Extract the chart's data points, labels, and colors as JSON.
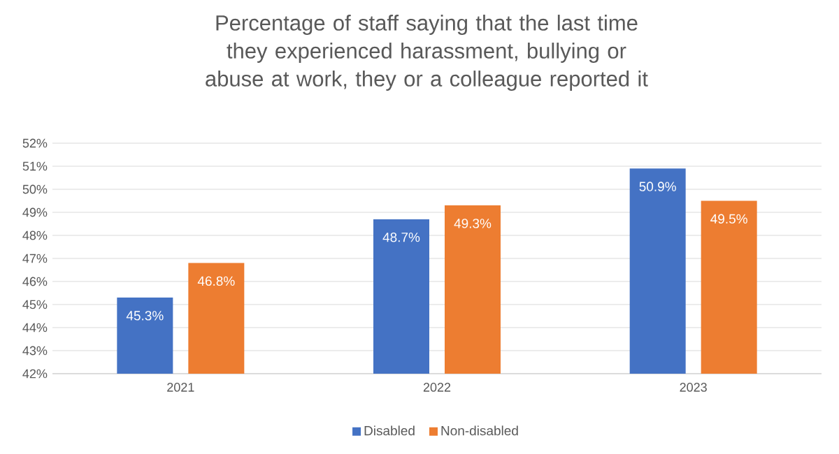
{
  "chart_data": {
    "type": "bar",
    "title": "Percentage of staff saying that the last time they experienced harassment, bullying or abuse at work, they or a colleague reported it",
    "categories": [
      "2021",
      "2022",
      "2023"
    ],
    "series": [
      {
        "name": "Disabled",
        "color": "#4472c4",
        "values": [
          45.3,
          48.7,
          50.9
        ],
        "value_labels": [
          "45.3%",
          "48.7%",
          "50.9%"
        ]
      },
      {
        "name": "Non-disabled",
        "color": "#ed7d31",
        "values": [
          46.8,
          49.3,
          49.5
        ],
        "value_labels": [
          "46.8%",
          "49.3%",
          "49.5%"
        ]
      }
    ],
    "ylim": [
      42,
      52
    ],
    "yticks": [
      {
        "value": 42,
        "label": "42%"
      },
      {
        "value": 43,
        "label": "43%"
      },
      {
        "value": 44,
        "label": "44%"
      },
      {
        "value": 45,
        "label": "45%"
      },
      {
        "value": 46,
        "label": "46%"
      },
      {
        "value": 47,
        "label": "47%"
      },
      {
        "value": 48,
        "label": "48%"
      },
      {
        "value": 49,
        "label": "49%"
      },
      {
        "value": 50,
        "label": "50%"
      },
      {
        "value": 51,
        "label": "51%"
      },
      {
        "value": 52,
        "label": "52%"
      }
    ],
    "grid": "y",
    "legend": "bottom"
  }
}
